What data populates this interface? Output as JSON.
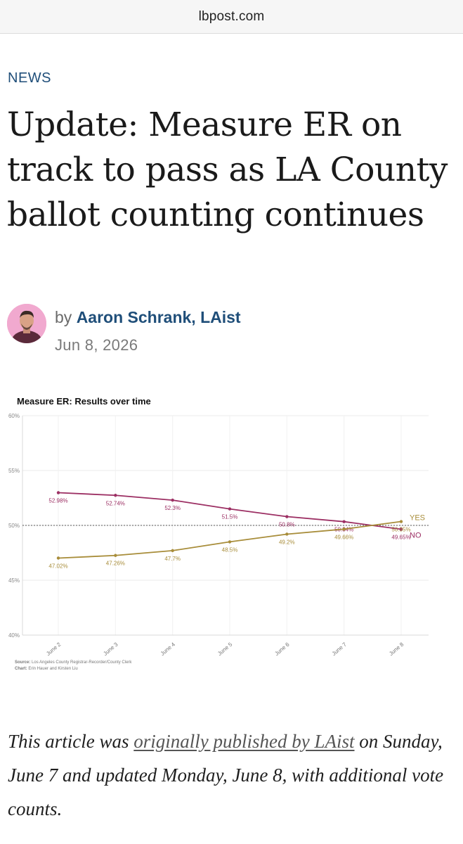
{
  "browser": {
    "url": "lbpost.com"
  },
  "article": {
    "category": "NEWS",
    "title": "Update: Measure ER on track to pass as LA County ballot counting continues",
    "byline_prefix": "by",
    "author": "Aaron Schrank, LAist",
    "date": "Jun 8, 2026",
    "note": {
      "prefix": "This article was ",
      "link_text": "originally published by LAist",
      "suffix": " on Sunday, June 7 and updated Monday, June 8, with additional vote counts."
    }
  },
  "chart_data": {
    "type": "line",
    "title": "Measure ER: Results over time",
    "categories": [
      "June 2",
      "June 3",
      "June 4",
      "June 5",
      "June 6",
      "June 7",
      "June 8"
    ],
    "ylim": [
      40,
      60
    ],
    "yticks": [
      "40%",
      "45%",
      "50%",
      "55%",
      "60%"
    ],
    "ytick_values": [
      40,
      45,
      50,
      55,
      60
    ],
    "reference_line": 50,
    "grid": true,
    "series": [
      {
        "name": "NO",
        "color": "#9c2f63",
        "values": [
          52.98,
          52.74,
          52.3,
          51.5,
          50.8,
          50.34,
          49.65
        ],
        "labels": [
          "52.98%",
          "52.74%",
          "52.3%",
          "51.5%",
          "50.8%",
          "50.34%",
          "49.65%"
        ]
      },
      {
        "name": "YES",
        "color": "#a88d3a",
        "values": [
          47.02,
          47.26,
          47.7,
          48.5,
          49.2,
          49.66,
          50.35
        ],
        "labels": [
          "47.02%",
          "47.26%",
          "47.7%",
          "48.5%",
          "49.2%",
          "49.66%",
          "50.35%"
        ]
      }
    ],
    "source_label": "Source:",
    "source_text": "Los Angeles County Registrar-Recorder/County Clerk",
    "credit_label": "Chart:",
    "credit_text": "Erin Hauer and Kirsten Liu"
  }
}
